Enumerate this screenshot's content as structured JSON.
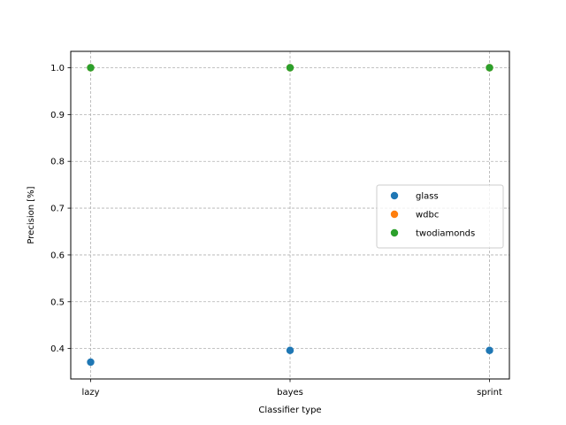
{
  "chart_data": {
    "type": "scatter",
    "title": "",
    "xlabel": "Classifier type",
    "ylabel": "Precision [%]",
    "categories": [
      "lazy",
      "bayes",
      "sprint"
    ],
    "ylim": [
      0.335,
      1.035
    ],
    "yticks": [
      "0.4",
      "0.5",
      "0.6",
      "0.7",
      "0.8",
      "0.9",
      "1.0"
    ],
    "grid": true,
    "legend_position": "center-right",
    "series": [
      {
        "name": "glass",
        "color": "#1f77b4",
        "values": [
          0.371,
          0.396,
          0.396
        ]
      },
      {
        "name": "wdbc",
        "color": "#ff7f0e",
        "values": [
          1.0,
          1.0,
          1.0
        ]
      },
      {
        "name": "twodiamonds",
        "color": "#2ca02c",
        "values": [
          1.0,
          1.0,
          1.0
        ]
      }
    ]
  }
}
